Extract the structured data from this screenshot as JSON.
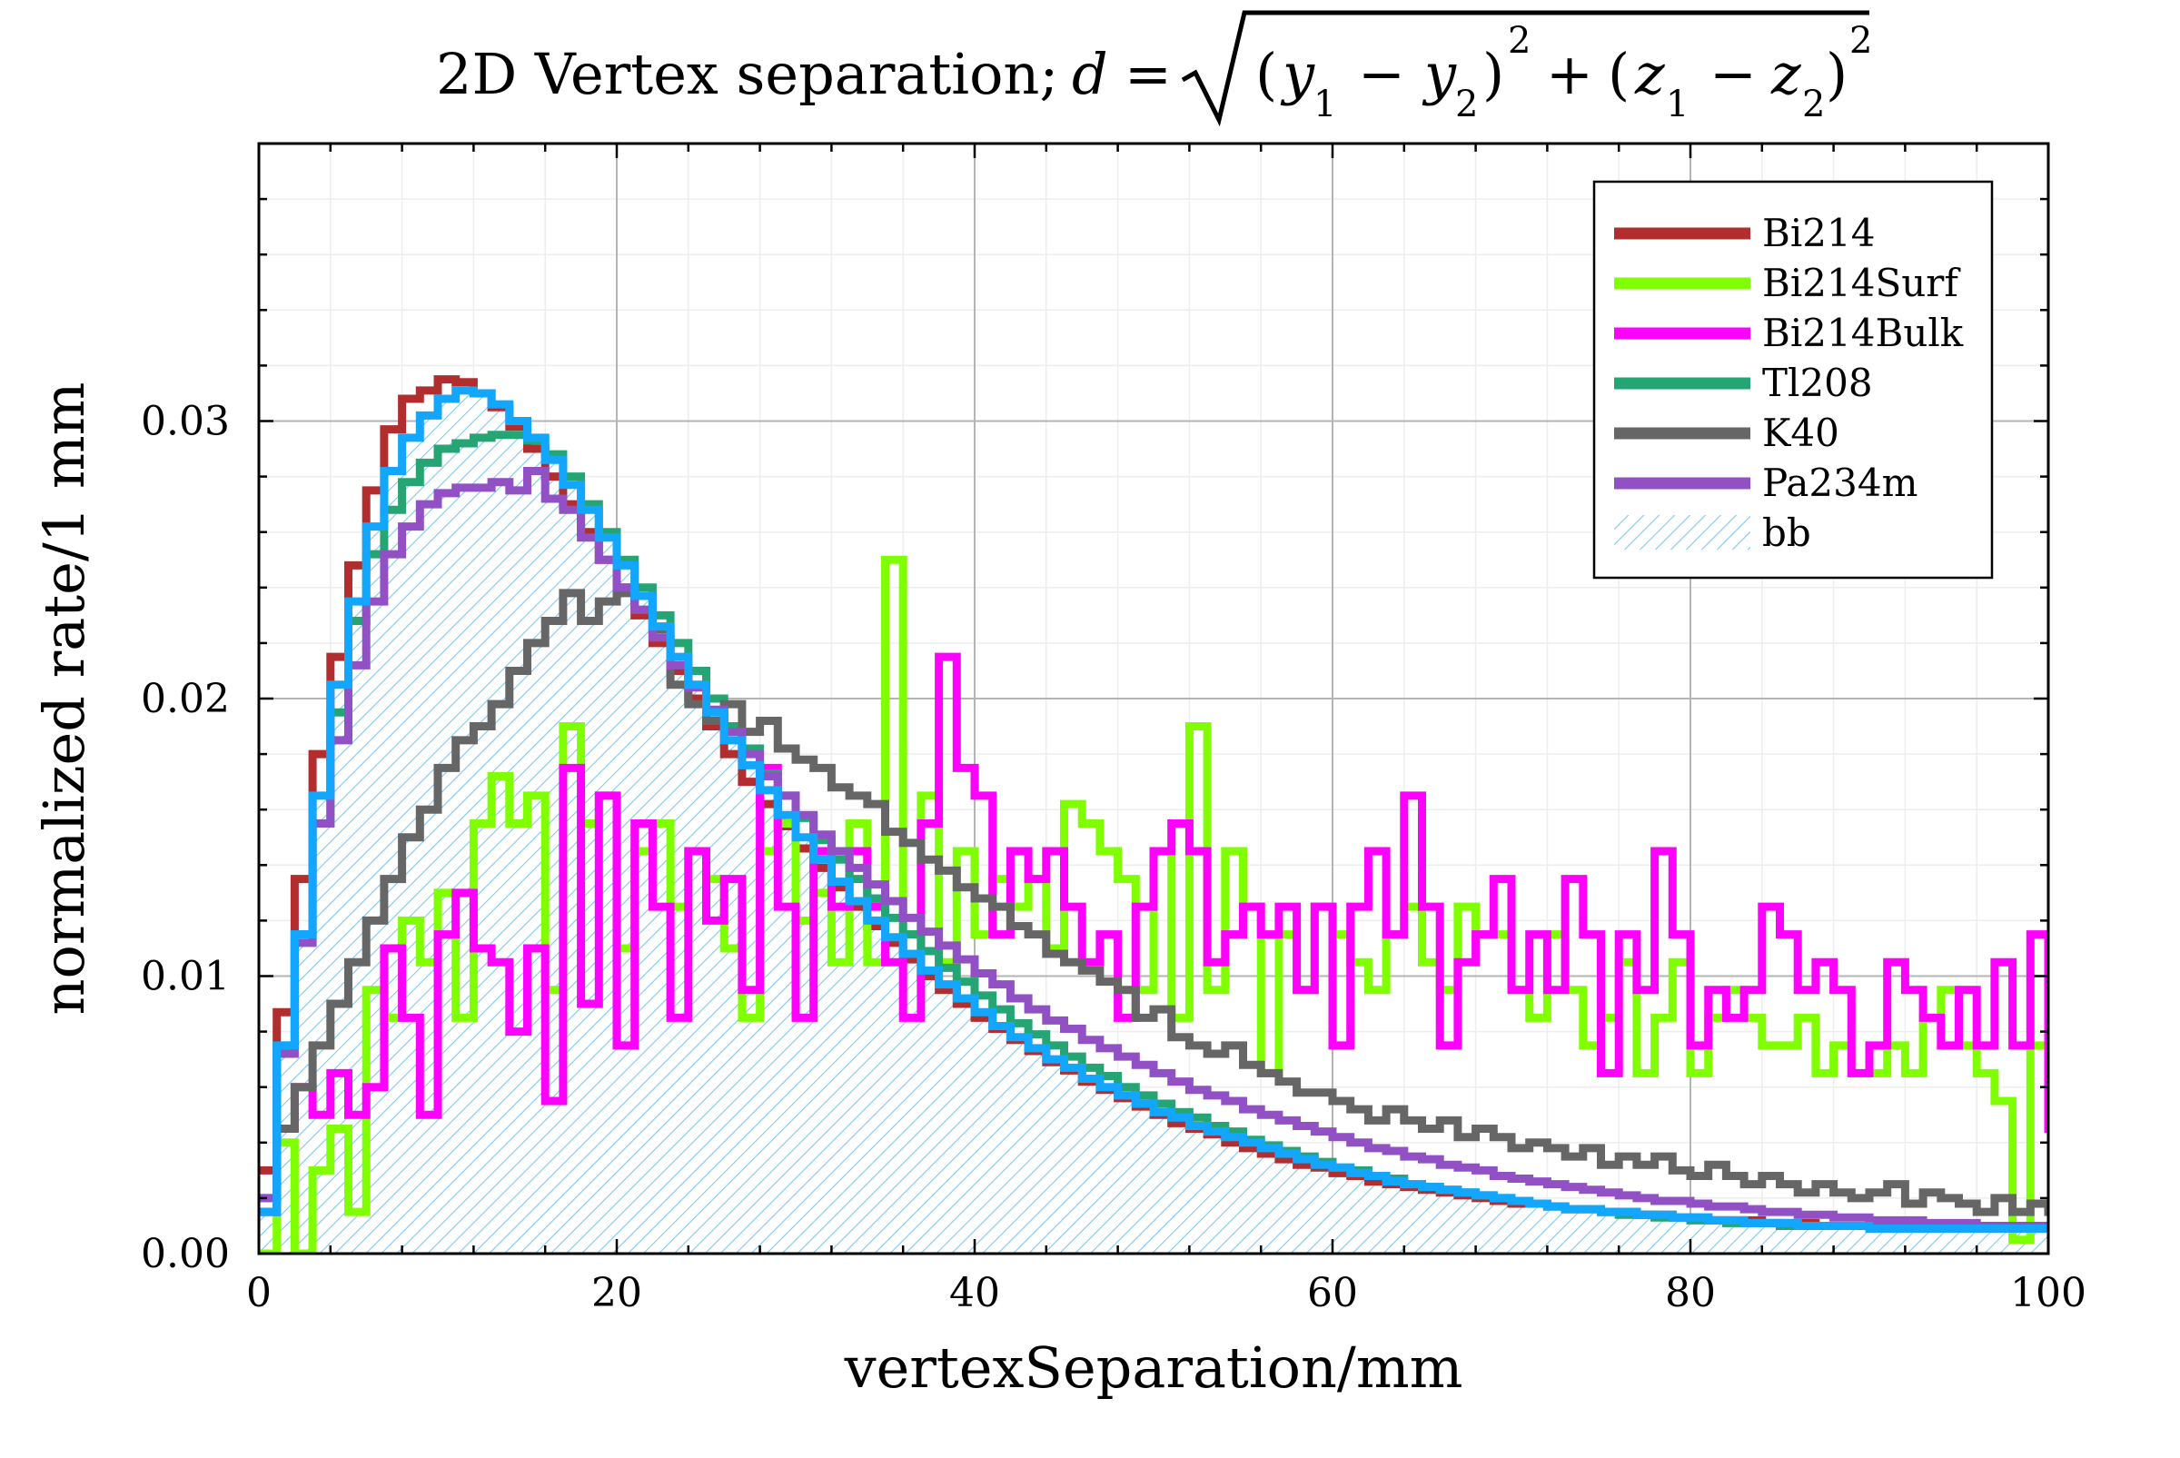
{
  "chart_data": {
    "type": "line",
    "title": "2D Vertex separation; d = √((y₁ − y₂)² + (z₁ − z₂)²)",
    "title_parts": {
      "prefix": "2D Vertex separation;",
      "d": "d",
      "equals": "=",
      "open1": "(",
      "y": "y",
      "sub1": "1",
      "minus": "−",
      "sub2": "2",
      "close_sq": "2",
      "plus": "+",
      "z": "z"
    },
    "xlabel": "vertexSeparation/mm",
    "ylabel": "normalized rate/1 mm",
    "xlim": [
      0,
      100
    ],
    "ylim": [
      0,
      0.04
    ],
    "x_ticks": [
      {
        "value": 0,
        "label": "0"
      },
      {
        "value": 20,
        "label": "20"
      },
      {
        "value": 40,
        "label": "40"
      },
      {
        "value": 60,
        "label": "60"
      },
      {
        "value": 80,
        "label": "80"
      },
      {
        "value": 100,
        "label": "100"
      }
    ],
    "y_ticks": [
      {
        "value": 0,
        "label": "0.00"
      },
      {
        "value": 0.01,
        "label": "0.01"
      },
      {
        "value": 0.02,
        "label": "0.02"
      },
      {
        "value": 0.03,
        "label": "0.03"
      }
    ],
    "grid": true,
    "legend_position": "top-right",
    "bin_width": 1,
    "series": [
      {
        "name": "Bi214",
        "color": "#b22d2d",
        "style": "step",
        "values": [
          0.003,
          0.0087,
          0.0135,
          0.018,
          0.0215,
          0.0248,
          0.0275,
          0.0297,
          0.0308,
          0.0311,
          0.0315,
          0.0314,
          0.031,
          0.0305,
          0.0298,
          0.029,
          0.028,
          0.027,
          0.026,
          0.025,
          0.024,
          0.023,
          0.022,
          0.021,
          0.02,
          0.019,
          0.018,
          0.017,
          0.0162,
          0.0154,
          0.0146,
          0.0139,
          0.0132,
          0.0125,
          0.0118,
          0.0112,
          0.0106,
          0.01,
          0.0095,
          0.009,
          0.0085,
          0.0081,
          0.0077,
          0.0073,
          0.0069,
          0.0066,
          0.0062,
          0.0059,
          0.0056,
          0.0053,
          0.005,
          0.0047,
          0.0045,
          0.0043,
          0.004,
          0.0038,
          0.0036,
          0.0034,
          0.0032,
          0.0031,
          0.0029,
          0.0028,
          0.0026,
          0.0025,
          0.0024,
          0.0023,
          0.0022,
          0.0021,
          0.002,
          0.0019,
          0.0018,
          0.0018,
          0.0017,
          0.0016,
          0.0016,
          0.0015,
          0.0015,
          0.0014,
          0.0014,
          0.0013,
          0.0013,
          0.0012,
          0.0012,
          0.0012,
          0.0011,
          0.0011,
          0.0011,
          0.001,
          0.001,
          0.001,
          0.001,
          0.001,
          0.001,
          0.001,
          0.001,
          0.001,
          0.001,
          0.001,
          0.001,
          0.001
        ]
      },
      {
        "name": "Bi214Surf",
        "color": "#7fff00",
        "style": "step",
        "values": [
          0.0,
          0.004,
          0.0,
          0.003,
          0.0045,
          0.0015,
          0.0095,
          0.0085,
          0.012,
          0.0105,
          0.013,
          0.0085,
          0.0155,
          0.0172,
          0.0155,
          0.0165,
          0.0095,
          0.019,
          0.0155,
          0.0165,
          0.011,
          0.0145,
          0.0155,
          0.0125,
          0.0145,
          0.0135,
          0.011,
          0.0085,
          0.0145,
          0.0155,
          0.012,
          0.013,
          0.0105,
          0.0155,
          0.0105,
          0.025,
          0.0115,
          0.0165,
          0.0105,
          0.0145,
          0.0115,
          0.0135,
          0.0125,
          0.0135,
          0.011,
          0.0162,
          0.0155,
          0.0145,
          0.0135,
          0.0095,
          0.0145,
          0.0085,
          0.019,
          0.0095,
          0.0145,
          0.0125,
          0.0065,
          0.0115,
          0.0095,
          0.0125,
          0.0115,
          0.0105,
          0.0095,
          0.0115,
          0.0125,
          0.0105,
          0.0095,
          0.0125,
          0.0115,
          0.0115,
          0.0095,
          0.0085,
          0.0115,
          0.0095,
          0.0075,
          0.0085,
          0.0105,
          0.0065,
          0.0085,
          0.0105,
          0.0065,
          0.0085,
          0.0095,
          0.0085,
          0.0075,
          0.0075,
          0.0085,
          0.0065,
          0.0075,
          0.0065,
          0.0065,
          0.0075,
          0.0065,
          0.0085,
          0.0095,
          0.0075,
          0.0065,
          0.0055,
          0.0005,
          0.0075
        ]
      },
      {
        "name": "Bi214Bulk",
        "color": "#ff00ff",
        "style": "step",
        "values": [
          0.0015,
          0.0045,
          0.006,
          0.005,
          0.0065,
          0.005,
          0.006,
          0.011,
          0.0085,
          0.005,
          0.0115,
          0.013,
          0.011,
          0.0105,
          0.008,
          0.011,
          0.0055,
          0.0175,
          0.009,
          0.0165,
          0.0075,
          0.0155,
          0.0125,
          0.0085,
          0.0145,
          0.012,
          0.0135,
          0.0095,
          0.0175,
          0.0125,
          0.0085,
          0.0145,
          0.0125,
          0.0145,
          0.0125,
          0.0105,
          0.0085,
          0.0155,
          0.0215,
          0.0175,
          0.0165,
          0.0115,
          0.0145,
          0.0135,
          0.0145,
          0.0125,
          0.0105,
          0.0115,
          0.0085,
          0.0125,
          0.0145,
          0.0155,
          0.0145,
          0.0105,
          0.0115,
          0.0125,
          0.0115,
          0.0125,
          0.0095,
          0.0125,
          0.0075,
          0.0125,
          0.0145,
          0.0115,
          0.0165,
          0.0125,
          0.0075,
          0.0105,
          0.0115,
          0.0135,
          0.0095,
          0.0115,
          0.0095,
          0.0135,
          0.0115,
          0.0065,
          0.0115,
          0.0095,
          0.0145,
          0.0115,
          0.0075,
          0.0095,
          0.0085,
          0.0095,
          0.0125,
          0.0115,
          0.0095,
          0.0105,
          0.0095,
          0.0065,
          0.0075,
          0.0105,
          0.0095,
          0.0085,
          0.0075,
          0.0095,
          0.0075,
          0.0105,
          0.0075,
          0.0115,
          0.0045
        ]
      },
      {
        "name": "Tl208",
        "color": "#25a574",
        "style": "step",
        "values": [
          0.002,
          0.0075,
          0.0115,
          0.0155,
          0.0195,
          0.0228,
          0.0252,
          0.0268,
          0.0278,
          0.0285,
          0.029,
          0.0292,
          0.0294,
          0.0295,
          0.0295,
          0.0293,
          0.0288,
          0.028,
          0.027,
          0.026,
          0.025,
          0.024,
          0.023,
          0.022,
          0.021,
          0.02,
          0.019,
          0.0182,
          0.0173,
          0.0165,
          0.0157,
          0.0149,
          0.0142,
          0.0135,
          0.0128,
          0.0121,
          0.0115,
          0.0109,
          0.0103,
          0.0098,
          0.0093,
          0.0088,
          0.0083,
          0.0079,
          0.0075,
          0.0071,
          0.0067,
          0.0064,
          0.006,
          0.0057,
          0.0054,
          0.0051,
          0.0049,
          0.0046,
          0.0044,
          0.0041,
          0.0039,
          0.0037,
          0.0035,
          0.0033,
          0.0031,
          0.003,
          0.0028,
          0.0027,
          0.0025,
          0.0024,
          0.0023,
          0.0022,
          0.0021,
          0.002,
          0.0019,
          0.0018,
          0.0017,
          0.0016,
          0.0016,
          0.0015,
          0.0014,
          0.0014,
          0.0013,
          0.0013,
          0.0012,
          0.0012,
          0.0011,
          0.0011,
          0.0011,
          0.001,
          0.001,
          0.001,
          0.001,
          0.001,
          0.001,
          0.001,
          0.001,
          0.001,
          0.001,
          0.001,
          0.001,
          0.001,
          0.001,
          0.001
        ]
      },
      {
        "name": "K40",
        "color": "#666666",
        "style": "step",
        "values": [
          0.0015,
          0.0045,
          0.006,
          0.0075,
          0.009,
          0.0105,
          0.012,
          0.0135,
          0.015,
          0.016,
          0.0175,
          0.0185,
          0.019,
          0.0198,
          0.021,
          0.022,
          0.0228,
          0.0238,
          0.0228,
          0.0235,
          0.0238,
          0.0232,
          0.0225,
          0.0205,
          0.0198,
          0.0192,
          0.0198,
          0.0188,
          0.0192,
          0.0182,
          0.0178,
          0.0175,
          0.0168,
          0.0165,
          0.0162,
          0.0152,
          0.0148,
          0.0142,
          0.0138,
          0.0132,
          0.0128,
          0.0125,
          0.0118,
          0.0115,
          0.0108,
          0.0105,
          0.0102,
          0.0098,
          0.0095,
          0.0085,
          0.0088,
          0.0078,
          0.0075,
          0.0072,
          0.0075,
          0.0068,
          0.0065,
          0.0062,
          0.0058,
          0.0058,
          0.0055,
          0.0052,
          0.0048,
          0.0052,
          0.0048,
          0.0045,
          0.0048,
          0.0042,
          0.0045,
          0.0042,
          0.0038,
          0.004,
          0.0038,
          0.0035,
          0.0038,
          0.0032,
          0.0035,
          0.0032,
          0.0035,
          0.003,
          0.0028,
          0.0032,
          0.0028,
          0.0025,
          0.0028,
          0.0025,
          0.0022,
          0.0025,
          0.0022,
          0.002,
          0.0022,
          0.0025,
          0.0018,
          0.0022,
          0.002,
          0.0018,
          0.0015,
          0.002,
          0.0015,
          0.0018,
          0.0015
        ]
      },
      {
        "name": "Pa234m",
        "color": "#9150c4",
        "style": "step",
        "values": [
          0.002,
          0.0072,
          0.0112,
          0.0155,
          0.0185,
          0.0212,
          0.0235,
          0.0252,
          0.0262,
          0.027,
          0.0274,
          0.0276,
          0.0276,
          0.0278,
          0.0275,
          0.0282,
          0.0272,
          0.0268,
          0.0258,
          0.025,
          0.024,
          0.0232,
          0.0222,
          0.0212,
          0.0204,
          0.0196,
          0.0188,
          0.018,
          0.0172,
          0.0165,
          0.0158,
          0.0151,
          0.0145,
          0.0139,
          0.0133,
          0.0127,
          0.0121,
          0.0116,
          0.0111,
          0.0106,
          0.0101,
          0.0097,
          0.0092,
          0.0088,
          0.0084,
          0.0081,
          0.0077,
          0.0074,
          0.0071,
          0.0068,
          0.0065,
          0.0062,
          0.0059,
          0.0057,
          0.0055,
          0.0052,
          0.005,
          0.0048,
          0.0046,
          0.0044,
          0.0042,
          0.004,
          0.0038,
          0.0037,
          0.0035,
          0.0034,
          0.0032,
          0.0031,
          0.003,
          0.0028,
          0.0027,
          0.0026,
          0.0025,
          0.0024,
          0.0023,
          0.0022,
          0.0021,
          0.002,
          0.0019,
          0.0019,
          0.0018,
          0.0017,
          0.0017,
          0.0016,
          0.0015,
          0.0015,
          0.0014,
          0.0014,
          0.0013,
          0.0013,
          0.0012,
          0.0012,
          0.0012,
          0.0011,
          0.0011,
          0.0011,
          0.001,
          0.001,
          0.001,
          0.001
        ]
      },
      {
        "name": "bb",
        "color": "#12a6ff",
        "style": "step",
        "fill": "hatch",
        "values": [
          0.0015,
          0.0075,
          0.0115,
          0.0165,
          0.0205,
          0.0235,
          0.0262,
          0.0282,
          0.0294,
          0.0302,
          0.0308,
          0.0311,
          0.031,
          0.0306,
          0.03,
          0.0294,
          0.0286,
          0.0277,
          0.0268,
          0.0258,
          0.0248,
          0.0237,
          0.0226,
          0.0215,
          0.0205,
          0.0195,
          0.0185,
          0.0176,
          0.0167,
          0.0158,
          0.015,
          0.0142,
          0.0134,
          0.0127,
          0.012,
          0.0114,
          0.0108,
          0.0102,
          0.0097,
          0.0092,
          0.0087,
          0.0082,
          0.0078,
          0.0074,
          0.007,
          0.0067,
          0.0063,
          0.006,
          0.0057,
          0.0054,
          0.0051,
          0.0049,
          0.0046,
          0.0044,
          0.0042,
          0.004,
          0.0038,
          0.0036,
          0.0034,
          0.0032,
          0.0031,
          0.0029,
          0.0028,
          0.0026,
          0.0025,
          0.0024,
          0.0023,
          0.0022,
          0.0021,
          0.002,
          0.0019,
          0.0018,
          0.0017,
          0.0016,
          0.0016,
          0.0015,
          0.0015,
          0.0014,
          0.0014,
          0.0013,
          0.0013,
          0.0012,
          0.0012,
          0.0011,
          0.0011,
          0.0011,
          0.001,
          0.001,
          0.001,
          0.001,
          0.0009,
          0.0009,
          0.0009,
          0.0009,
          0.0009,
          0.0009,
          0.0009,
          0.0009,
          0.0009,
          0.0009
        ]
      }
    ]
  }
}
